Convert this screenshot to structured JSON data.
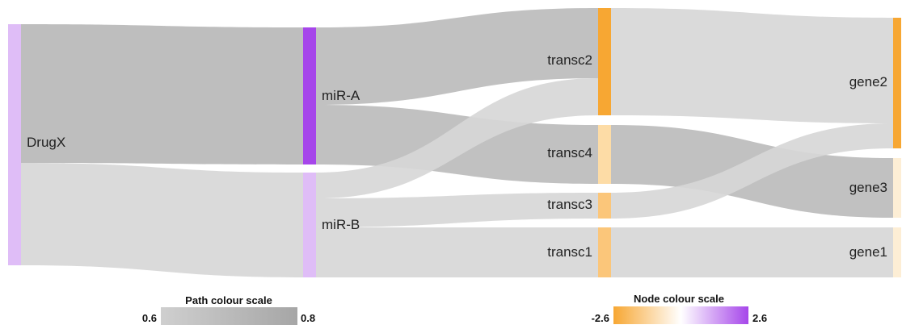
{
  "nodes": [
    {
      "id": "DrugX",
      "label": "DrugX",
      "color": "#dfbdf7"
    },
    {
      "id": "miR-A",
      "label": "miR-A",
      "color": "#a646ea"
    },
    {
      "id": "miR-B",
      "label": "miR-B",
      "color": "#dfbdf7"
    },
    {
      "id": "transc2",
      "label": "transc2",
      "color": "#f7a733"
    },
    {
      "id": "transc4",
      "label": "transc4",
      "color": "#fddca6"
    },
    {
      "id": "transc3",
      "label": "transc3",
      "color": "#fbc67a"
    },
    {
      "id": "transc1",
      "label": "transc1",
      "color": "#fbc67a"
    },
    {
      "id": "gene2",
      "label": "gene2",
      "color": "#f7a733"
    },
    {
      "id": "gene3",
      "label": "gene3",
      "color": "#fdeed5"
    },
    {
      "id": "gene1",
      "label": "gene1",
      "color": "#fdeed5"
    }
  ],
  "links": [
    {
      "source": "DrugX",
      "target": "miR-A",
      "value": 0.8,
      "color": "#b9b9b9"
    },
    {
      "source": "DrugX",
      "target": "miR-B",
      "value": 0.6,
      "color": "#d7d7d7"
    },
    {
      "source": "miR-A",
      "target": "transc2",
      "value": 0.8,
      "color": "#bcbcbc"
    },
    {
      "source": "miR-A",
      "target": "transc4",
      "value": 0.8,
      "color": "#bcbcbc"
    },
    {
      "source": "miR-B",
      "target": "transc2",
      "value": 0.6,
      "color": "#d7d7d7"
    },
    {
      "source": "miR-B",
      "target": "transc3",
      "value": 0.6,
      "color": "#d7d7d7"
    },
    {
      "source": "miR-B",
      "target": "transc1",
      "value": 0.6,
      "color": "#d7d7d7"
    },
    {
      "source": "transc2",
      "target": "gene2",
      "value": 0.6,
      "color": "#d7d7d7"
    },
    {
      "source": "transc4",
      "target": "gene3",
      "value": 0.8,
      "color": "#bcbcbc"
    },
    {
      "source": "transc3",
      "target": "gene2",
      "value": 0.6,
      "color": "#d7d7d7"
    },
    {
      "source": "transc1",
      "target": "gene1",
      "value": 0.6,
      "color": "#d7d7d7"
    }
  ],
  "path_scale": {
    "title": "Path colour scale",
    "min_label": "0.6",
    "max_label": "0.8",
    "color_min": "#cfcfcf",
    "color_max": "#a6a6a6"
  },
  "node_scale": {
    "title": "Node colour scale",
    "min_label": "-2.6",
    "max_label": "2.6",
    "color_min": "#f7a733",
    "color_mid": "#ffffff",
    "color_max": "#a646ea"
  }
}
